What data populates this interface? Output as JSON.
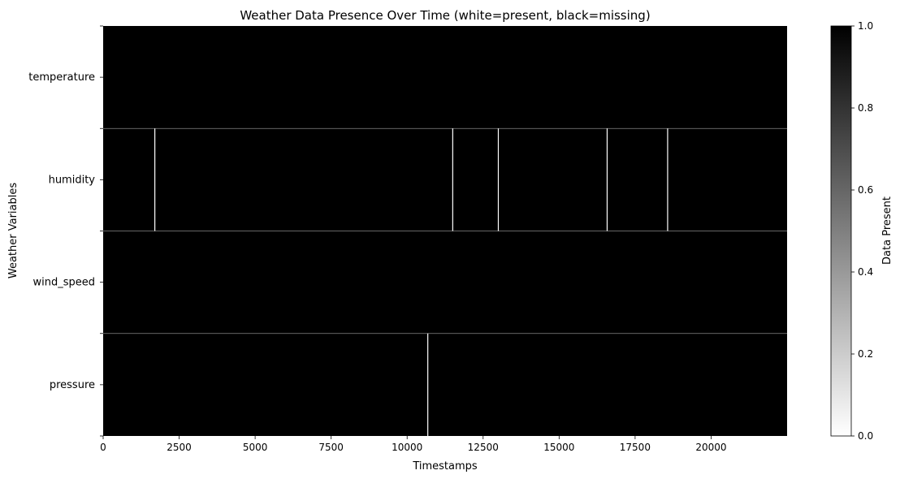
{
  "chart_data": {
    "type": "heatmap",
    "title": "Weather Data Presence Over Time (white=present, black=missing)",
    "xlabel": "Timestamps",
    "ylabel": "Weather Variables",
    "xlim": [
      0,
      22500
    ],
    "x_ticks": [
      0,
      2500,
      5000,
      7500,
      10000,
      12500,
      15000,
      17500,
      20000
    ],
    "x_tick_labels": [
      "0",
      "2500",
      "5000",
      "7500",
      "10000",
      "12500",
      "15000",
      "17500",
      "20000"
    ],
    "rows": [
      "temperature",
      "humidity",
      "wind_speed",
      "pressure"
    ],
    "background_value": 1,
    "present_markers": [
      {
        "row": "humidity",
        "x": 1700
      },
      {
        "row": "humidity",
        "x": 11500
      },
      {
        "row": "humidity",
        "x": 13000
      },
      {
        "row": "humidity",
        "x": 16580
      },
      {
        "row": "humidity",
        "x": 18570
      },
      {
        "row": "pressure",
        "x": 10680
      }
    ],
    "colorbar": {
      "label": "Data Present",
      "range": [
        0.0,
        1.0
      ],
      "ticks": [
        0.0,
        0.2,
        0.4,
        0.6,
        0.8,
        1.0
      ],
      "tick_labels": [
        "0.0",
        "0.2",
        "0.4",
        "0.6",
        "0.8",
        "1.0"
      ],
      "colors": [
        "#ffffff",
        "#000000"
      ]
    },
    "row_separator_color": "#888888",
    "grid": false,
    "legend": "right"
  }
}
